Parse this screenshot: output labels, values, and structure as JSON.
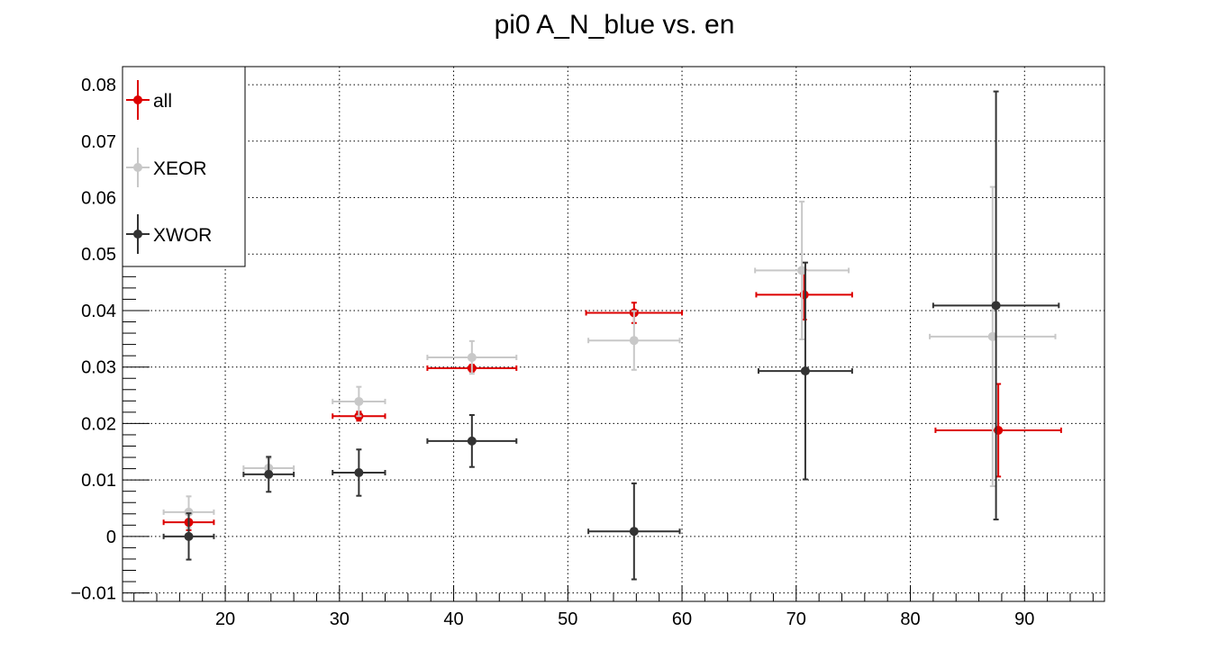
{
  "chart_data": {
    "type": "scatter",
    "title": "pi0 A_N_blue vs. en",
    "xlabel": "",
    "ylabel": "",
    "xlim": [
      11,
      97
    ],
    "ylim": [
      -0.0115,
      0.0832
    ],
    "grid": true,
    "legend_position": "top-left",
    "x_ticks": [
      20,
      30,
      40,
      50,
      60,
      70,
      80,
      90
    ],
    "x_tick_labels": [
      "20",
      "30",
      "40",
      "50",
      "60",
      "70",
      "80",
      "90"
    ],
    "y_ticks": [
      -0.01,
      0,
      0.01,
      0.02,
      0.03,
      0.04,
      0.05,
      0.06,
      0.07,
      0.08
    ],
    "y_tick_labels": [
      "−0.01",
      "0",
      "0.01",
      "0.02",
      "0.03",
      "0.04",
      "0.05",
      "0.06",
      "0.07",
      "0.08"
    ],
    "series": [
      {
        "name": "all",
        "color": "#dd0000",
        "points": [
          {
            "x": 16.8,
            "y": 0.0025,
            "xerr": 2.2,
            "yerr": 0.0014
          },
          {
            "x": 31.7,
            "y": 0.0213,
            "xerr": 2.3,
            "yerr": 0.0008
          },
          {
            "x": 41.6,
            "y": 0.0298,
            "xerr": 3.9,
            "yerr": 0.0006
          },
          {
            "x": 55.8,
            "y": 0.0396,
            "xerr": 4.2,
            "yerr": 0.0018
          },
          {
            "x": 70.7,
            "y": 0.0428,
            "xerr": 4.2,
            "yerr": 0.0044
          },
          {
            "x": 87.7,
            "y": 0.0188,
            "xerr": 5.5,
            "yerr": 0.0082
          }
        ]
      },
      {
        "name": "XEOR",
        "color": "#c8c8c8",
        "points": [
          {
            "x": 16.8,
            "y": 0.0043,
            "xerr": 2.2,
            "yerr": 0.0028
          },
          {
            "x": 23.8,
            "y": 0.0121,
            "xerr": 2.2,
            "yerr": 0.0017
          },
          {
            "x": 31.7,
            "y": 0.0239,
            "xerr": 2.3,
            "yerr": 0.0026
          },
          {
            "x": 41.6,
            "y": 0.0317,
            "xerr": 3.9,
            "yerr": 0.0029
          },
          {
            "x": 55.8,
            "y": 0.0347,
            "xerr": 4.0,
            "yerr": 0.0052
          },
          {
            "x": 70.5,
            "y": 0.0471,
            "xerr": 4.1,
            "yerr": 0.0122
          },
          {
            "x": 87.2,
            "y": 0.0354,
            "xerr": 5.5,
            "yerr": 0.0265
          }
        ]
      },
      {
        "name": "XWOR",
        "color": "#333333",
        "points": [
          {
            "x": 16.8,
            "y": 0.0,
            "xerr": 2.2,
            "yerr": 0.0041
          },
          {
            "x": 23.8,
            "y": 0.011,
            "xerr": 2.2,
            "yerr": 0.0031
          },
          {
            "x": 31.7,
            "y": 0.0113,
            "xerr": 2.3,
            "yerr": 0.0041
          },
          {
            "x": 41.6,
            "y": 0.0169,
            "xerr": 3.9,
            "yerr": 0.0046
          },
          {
            "x": 55.8,
            "y": 0.0009,
            "xerr": 4.0,
            "yerr": 0.0085
          },
          {
            "x": 70.8,
            "y": 0.0293,
            "xerr": 4.1,
            "yerr": 0.0192
          },
          {
            "x": 87.5,
            "y": 0.0409,
            "xerr": 5.5,
            "yerr": 0.0379
          }
        ]
      }
    ]
  }
}
